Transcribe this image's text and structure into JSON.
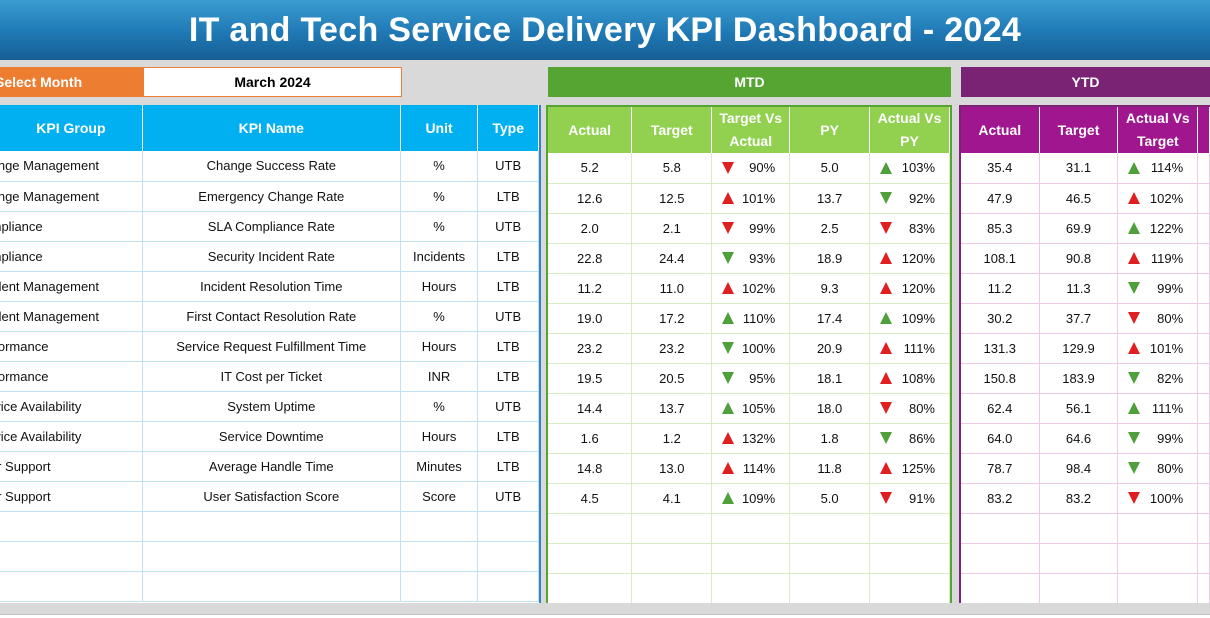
{
  "title": "IT and Tech Service Delivery KPI Dashboard - 2024",
  "selector": {
    "label": "Select Month",
    "value": "March 2024"
  },
  "sections": {
    "mtd": "MTD",
    "ytd": "YTD"
  },
  "left_headers": [
    "KPI Group",
    "KPI Name",
    "Unit",
    "Type"
  ],
  "mtd_headers": [
    "Actual",
    "Target",
    "Target Vs Actual",
    "PY",
    "Actual Vs PY"
  ],
  "ytd_headers": [
    "Actual",
    "Target",
    "Actual Vs Target"
  ],
  "colors": {
    "title": "#1f78b4",
    "select": "#ed7d31",
    "mtd": "#56a532",
    "ytd": "#7a2274",
    "kpi_header": "#00b0f0",
    "good": "#4fa03a",
    "bad": "#e02020"
  },
  "rows": [
    {
      "group": "Change Management",
      "name": "Change Success Rate",
      "unit": "%",
      "type": "UTB",
      "mtd": {
        "actual": "5.2",
        "target": "5.8",
        "tva": "90%",
        "tva_icon": "down-red",
        "py": "5.0",
        "avp": "103%",
        "avp_icon": "up-green"
      },
      "ytd": {
        "actual": "35.4",
        "target": "31.1",
        "avt": "114%",
        "avt_icon": "up-green"
      }
    },
    {
      "group": "Change Management",
      "name": "Emergency Change Rate",
      "unit": "%",
      "type": "LTB",
      "mtd": {
        "actual": "12.6",
        "target": "12.5",
        "tva": "101%",
        "tva_icon": "up-red",
        "py": "13.7",
        "avp": "92%",
        "avp_icon": "down-green"
      },
      "ytd": {
        "actual": "47.9",
        "target": "46.5",
        "avt": "102%",
        "avt_icon": "up-red"
      }
    },
    {
      "group": "Compliance",
      "name": "SLA Compliance Rate",
      "unit": "%",
      "type": "UTB",
      "mtd": {
        "actual": "2.0",
        "target": "2.1",
        "tva": "99%",
        "tva_icon": "down-red",
        "py": "2.5",
        "avp": "83%",
        "avp_icon": "down-red"
      },
      "ytd": {
        "actual": "85.3",
        "target": "69.9",
        "avt": "122%",
        "avt_icon": "up-green"
      }
    },
    {
      "group": "Compliance",
      "name": "Security Incident Rate",
      "unit": "Incidents",
      "type": "LTB",
      "mtd": {
        "actual": "22.8",
        "target": "24.4",
        "tva": "93%",
        "tva_icon": "down-green",
        "py": "18.9",
        "avp": "120%",
        "avp_icon": "up-red"
      },
      "ytd": {
        "actual": "108.1",
        "target": "90.8",
        "avt": "119%",
        "avt_icon": "up-red"
      }
    },
    {
      "group": "Incident Management",
      "name": "Incident Resolution Time",
      "unit": "Hours",
      "type": "LTB",
      "mtd": {
        "actual": "11.2",
        "target": "11.0",
        "tva": "102%",
        "tva_icon": "up-red",
        "py": "9.3",
        "avp": "120%",
        "avp_icon": "up-red"
      },
      "ytd": {
        "actual": "11.2",
        "target": "11.3",
        "avt": "99%",
        "avt_icon": "down-green"
      }
    },
    {
      "group": "Incident Management",
      "name": "First Contact Resolution Rate",
      "unit": "%",
      "type": "UTB",
      "mtd": {
        "actual": "19.0",
        "target": "17.2",
        "tva": "110%",
        "tva_icon": "up-green",
        "py": "17.4",
        "avp": "109%",
        "avp_icon": "up-green"
      },
      "ytd": {
        "actual": "30.2",
        "target": "37.7",
        "avt": "80%",
        "avt_icon": "down-red"
      }
    },
    {
      "group": "Performance",
      "name": "Service Request Fulfillment Time",
      "unit": "Hours",
      "type": "LTB",
      "mtd": {
        "actual": "23.2",
        "target": "23.2",
        "tva": "100%",
        "tva_icon": "down-green",
        "py": "20.9",
        "avp": "111%",
        "avp_icon": "up-red"
      },
      "ytd": {
        "actual": "131.3",
        "target": "129.9",
        "avt": "101%",
        "avt_icon": "up-red"
      }
    },
    {
      "group": "Performance",
      "name": "IT Cost per Ticket",
      "unit": "INR",
      "type": "LTB",
      "mtd": {
        "actual": "19.5",
        "target": "20.5",
        "tva": "95%",
        "tva_icon": "down-green",
        "py": "18.1",
        "avp": "108%",
        "avp_icon": "up-red"
      },
      "ytd": {
        "actual": "150.8",
        "target": "183.9",
        "avt": "82%",
        "avt_icon": "down-green"
      }
    },
    {
      "group": "Service Availability",
      "name": "System Uptime",
      "unit": "%",
      "type": "UTB",
      "mtd": {
        "actual": "14.4",
        "target": "13.7",
        "tva": "105%",
        "tva_icon": "up-green",
        "py": "18.0",
        "avp": "80%",
        "avp_icon": "down-red"
      },
      "ytd": {
        "actual": "62.4",
        "target": "56.1",
        "avt": "111%",
        "avt_icon": "up-green"
      }
    },
    {
      "group": "Service Availability",
      "name": "Service Downtime",
      "unit": "Hours",
      "type": "LTB",
      "mtd": {
        "actual": "1.6",
        "target": "1.2",
        "tva": "132%",
        "tva_icon": "up-red",
        "py": "1.8",
        "avp": "86%",
        "avp_icon": "down-green"
      },
      "ytd": {
        "actual": "64.0",
        "target": "64.6",
        "avt": "99%",
        "avt_icon": "down-green"
      }
    },
    {
      "group": "User Support",
      "name": "Average Handle Time",
      "unit": "Minutes",
      "type": "LTB",
      "mtd": {
        "actual": "14.8",
        "target": "13.0",
        "tva": "114%",
        "tva_icon": "up-red",
        "py": "11.8",
        "avp": "125%",
        "avp_icon": "up-red"
      },
      "ytd": {
        "actual": "78.7",
        "target": "98.4",
        "avt": "80%",
        "avt_icon": "down-green"
      }
    },
    {
      "group": "User Support",
      "name": "User Satisfaction Score",
      "unit": "Score",
      "type": "UTB",
      "mtd": {
        "actual": "4.5",
        "target": "4.1",
        "tva": "109%",
        "tva_icon": "up-green",
        "py": "5.0",
        "avp": "91%",
        "avp_icon": "down-red"
      },
      "ytd": {
        "actual": "83.2",
        "target": "83.2",
        "avt": "100%",
        "avt_icon": "down-red"
      }
    }
  ],
  "empty_rows": 3
}
